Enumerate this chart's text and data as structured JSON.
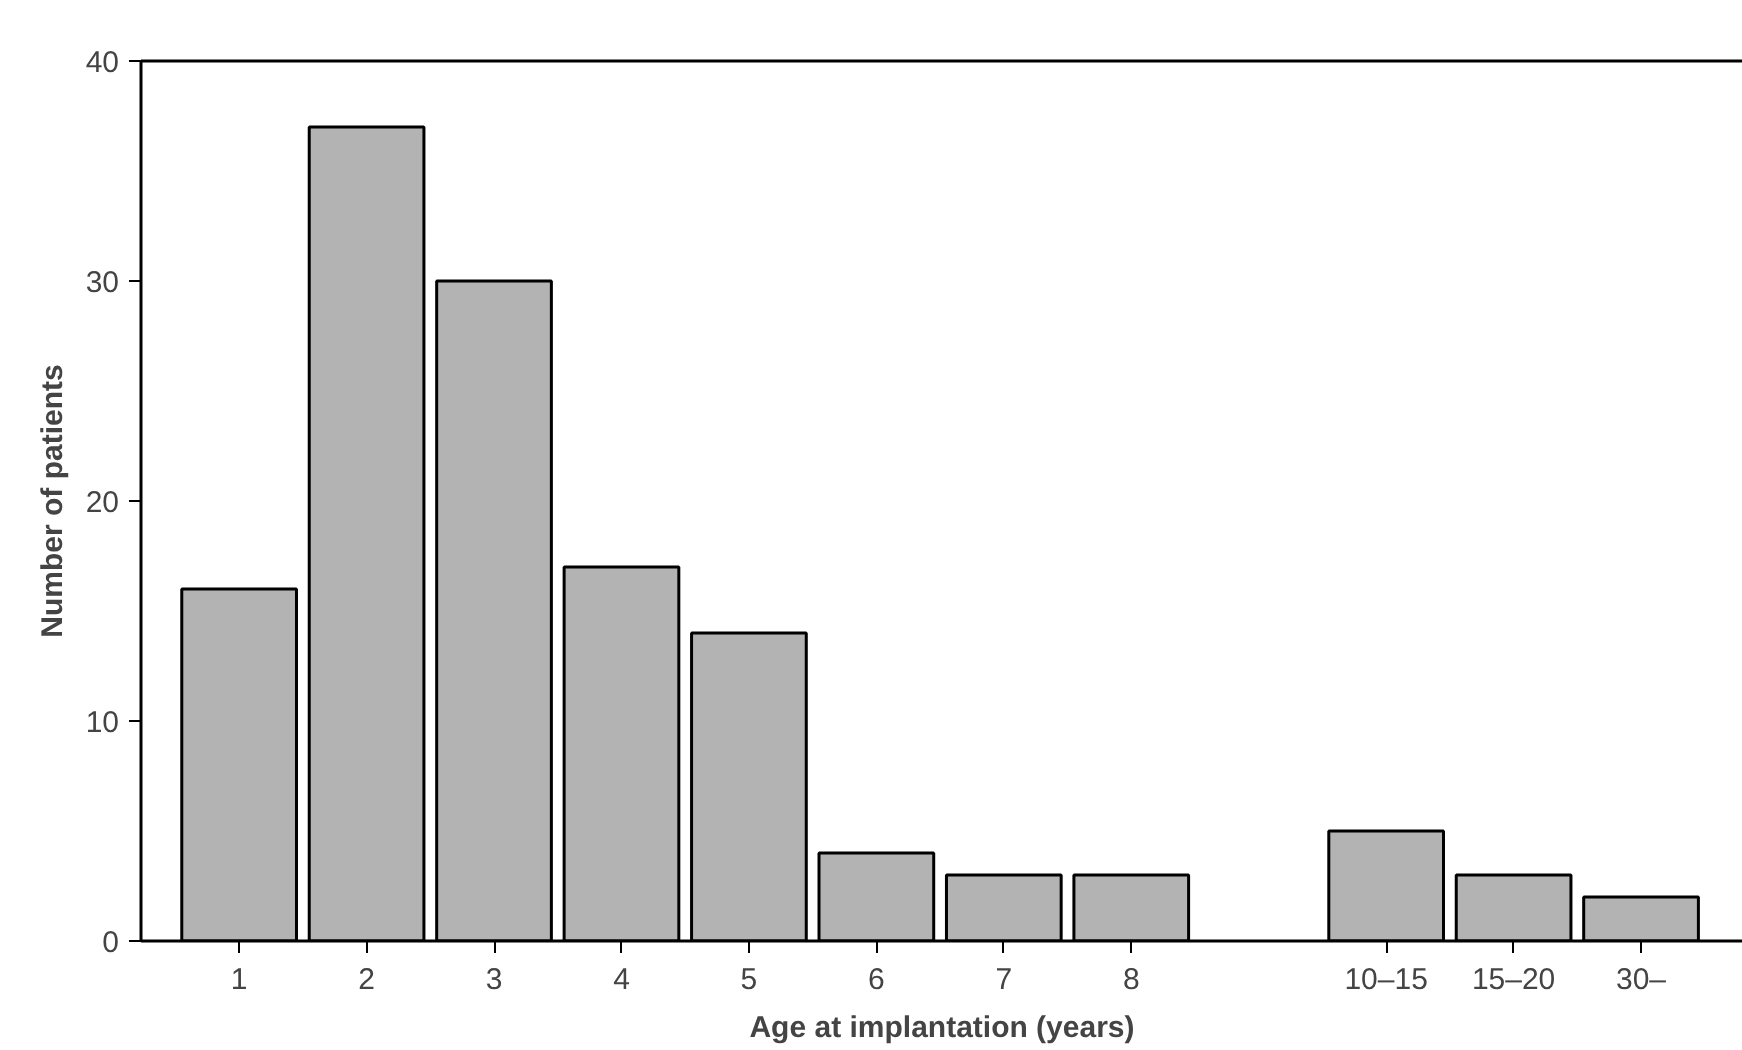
{
  "chart_data": {
    "type": "bar",
    "xlabel": "Age at implantation (years)",
    "ylabel": "Number of patients",
    "categories": [
      "1",
      "2",
      "3",
      "4",
      "5",
      "6",
      "7",
      "8",
      null,
      "10–15",
      "15–20",
      "30–"
    ],
    "values": [
      16,
      37,
      30,
      17,
      14,
      4,
      3,
      3,
      null,
      5,
      3,
      2
    ],
    "color": "#b3b3b3",
    "ylim": [
      0,
      40
    ],
    "yticks": [
      0,
      10,
      20,
      30,
      40
    ],
    "grid": false
  }
}
